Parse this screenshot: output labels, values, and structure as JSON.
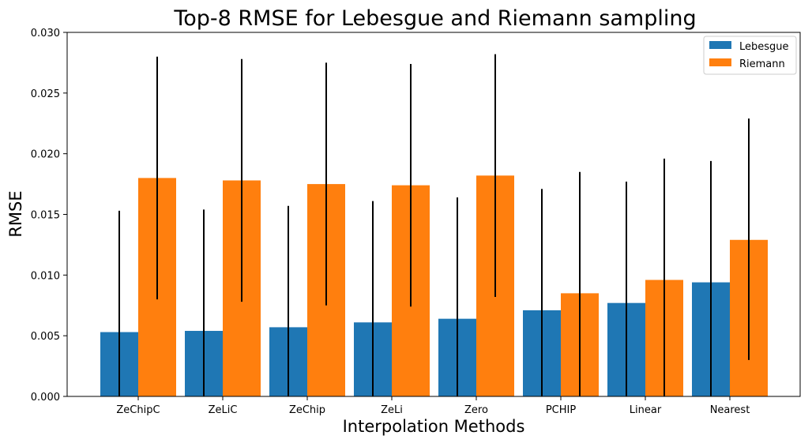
{
  "chart_data": {
    "type": "bar",
    "title": "Top-8 RMSE for Lebesgue and Riemann sampling",
    "xlabel": "Interpolation Methods",
    "ylabel": "RMSE",
    "ylim": [
      0,
      0.03
    ],
    "yticks": [
      "0.000",
      "0.005",
      "0.010",
      "0.015",
      "0.020",
      "0.025",
      "0.030"
    ],
    "categories": [
      "ZeChipC",
      "ZeLiC",
      "ZeChip",
      "ZeLi",
      "Zero",
      "PCHIP",
      "Linear",
      "Nearest"
    ],
    "series": [
      {
        "name": "Lebesgue",
        "color": "#1f77b4",
        "values": [
          0.0053,
          0.0054,
          0.0057,
          0.0061,
          0.0064,
          0.0071,
          0.0077,
          0.0094
        ],
        "err_low": [
          0.0,
          0.0,
          0.0,
          0.0,
          0.0,
          0.0,
          0.0,
          0.0
        ],
        "err_high": [
          0.0153,
          0.0154,
          0.0157,
          0.0161,
          0.0164,
          0.0171,
          0.0177,
          0.0194
        ]
      },
      {
        "name": "Riemann",
        "color": "#ff7f0e",
        "values": [
          0.018,
          0.0178,
          0.0175,
          0.0174,
          0.0182,
          0.0085,
          0.0096,
          0.0129
        ],
        "err_low": [
          0.008,
          0.0078,
          0.0075,
          0.0074,
          0.0082,
          0.0,
          0.0,
          0.003
        ],
        "err_high": [
          0.028,
          0.0278,
          0.0275,
          0.0274,
          0.0282,
          0.0185,
          0.0196,
          0.0229
        ]
      }
    ],
    "grid": false,
    "legend_position": "top-right"
  }
}
